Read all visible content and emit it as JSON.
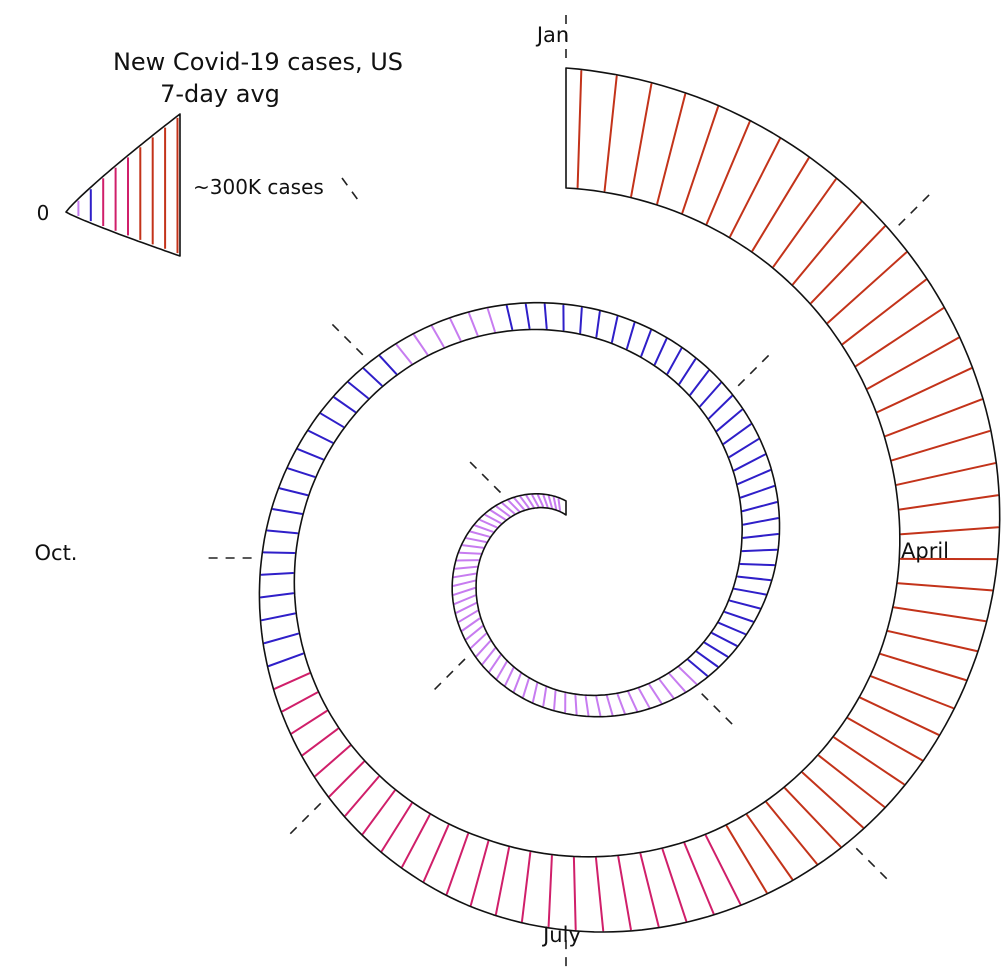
{
  "chart_data": {
    "type": "spiral",
    "title": "New Covid-19 cases, US",
    "subtitle": "7-day avg",
    "legend": {
      "min_label": "0",
      "max_label": "~300K cases"
    },
    "month_labels": [
      {
        "text": "Jan",
        "turn": 2.0
      },
      {
        "text": "April",
        "turn": 1.25
      },
      {
        "text": "July",
        "turn": 1.5
      },
      {
        "text": "Oct.",
        "turn": 1.75
      }
    ],
    "extra_tick_turns": [
      0.125,
      0.375,
      0.625,
      0.875,
      1.125,
      1.375,
      1.625,
      1.875
    ],
    "start_turn": 0.0,
    "end_turn": 2.0,
    "values_k": [
      0,
      1,
      2,
      4,
      7,
      10,
      14,
      18,
      22,
      25,
      28,
      30,
      31,
      30,
      28,
      26,
      24,
      22,
      21,
      21,
      20,
      21,
      23,
      26,
      30,
      34,
      38,
      44,
      50,
      57,
      63,
      67,
      68,
      67,
      64,
      60,
      55,
      50,
      46,
      42,
      39,
      37,
      36,
      35,
      35,
      36,
      38,
      41,
      44,
      48,
      53,
      58,
      64,
      72,
      82,
      95,
      110,
      125,
      140,
      155,
      165,
      172,
      178,
      182,
      186,
      192,
      198,
      205,
      212,
      220,
      230,
      240,
      250,
      258,
      262,
      265,
      268,
      272,
      278,
      285,
      292,
      300
    ],
    "colors": [
      "#c77cf0",
      "#2f1fc9",
      "#d01f6a",
      "#c3331a"
    ]
  }
}
